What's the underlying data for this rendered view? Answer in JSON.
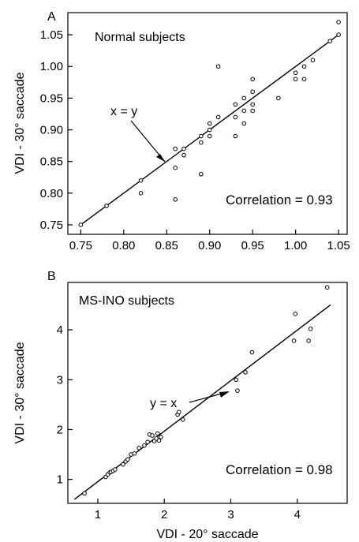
{
  "chart_data": [
    {
      "panel": "A",
      "type": "scatter",
      "title": "Normal subjects",
      "xlabel": "",
      "ylabel": "VDI - 30° saccade",
      "xlim": [
        0.735,
        1.06
      ],
      "ylim": [
        0.735,
        1.085
      ],
      "xticks": [
        0.75,
        0.8,
        0.85,
        0.9,
        0.95,
        1.0,
        1.05
      ],
      "xtick_labels": [
        "0.75",
        "0.80",
        "0.85",
        "0.90",
        "0.95",
        "1.00",
        "1.05"
      ],
      "yticks": [
        0.75,
        0.8,
        0.85,
        0.9,
        0.95,
        1.0,
        1.05
      ],
      "ytick_labels": [
        "0.75",
        "0.80",
        "0.85",
        "0.90",
        "0.95",
        "1.00",
        "1.05"
      ],
      "line": {
        "label": "x = y",
        "from": [
          0.75,
          0.75
        ],
        "to": [
          1.05,
          1.05
        ]
      },
      "annotation": "Correlation = 0.93",
      "points": [
        [
          0.75,
          0.75
        ],
        [
          0.78,
          0.78
        ],
        [
          0.82,
          0.8
        ],
        [
          0.82,
          0.82
        ],
        [
          0.86,
          0.79
        ],
        [
          0.86,
          0.84
        ],
        [
          0.86,
          0.87
        ],
        [
          0.87,
          0.86
        ],
        [
          0.87,
          0.87
        ],
        [
          0.89,
          0.83
        ],
        [
          0.89,
          0.88
        ],
        [
          0.89,
          0.89
        ],
        [
          0.9,
          0.89
        ],
        [
          0.9,
          0.9
        ],
        [
          0.9,
          0.91
        ],
        [
          0.91,
          0.92
        ],
        [
          0.91,
          1.0
        ],
        [
          0.93,
          0.89
        ],
        [
          0.93,
          0.92
        ],
        [
          0.93,
          0.94
        ],
        [
          0.94,
          0.91
        ],
        [
          0.94,
          0.93
        ],
        [
          0.94,
          0.95
        ],
        [
          0.95,
          0.93
        ],
        [
          0.95,
          0.94
        ],
        [
          0.95,
          0.96
        ],
        [
          0.95,
          0.98
        ],
        [
          0.98,
          0.95
        ],
        [
          1.0,
          0.98
        ],
        [
          1.0,
          0.99
        ],
        [
          1.01,
          0.98
        ],
        [
          1.01,
          1.0
        ],
        [
          1.02,
          1.01
        ],
        [
          1.04,
          1.04
        ],
        [
          1.05,
          1.05
        ],
        [
          1.05,
          1.07
        ]
      ]
    },
    {
      "panel": "B",
      "type": "scatter",
      "title": "MS-INO subjects",
      "xlabel": "VDI - 20° saccade",
      "ylabel": "VDI - 30° saccade",
      "xlim": [
        0.55,
        4.75
      ],
      "ylim": [
        0.52,
        4.95
      ],
      "xticks": [
        1,
        2,
        3,
        4
      ],
      "xtick_labels": [
        "1",
        "2",
        "3",
        "4"
      ],
      "yticks": [
        1,
        2,
        3,
        4
      ],
      "ytick_labels": [
        "1",
        "2",
        "3",
        "4"
      ],
      "line": {
        "label": "y = x",
        "from": [
          0.65,
          0.6
        ],
        "to": [
          4.5,
          4.5
        ]
      },
      "annotation": "Correlation = 0.98",
      "points": [
        [
          0.8,
          0.72
        ],
        [
          1.12,
          1.05
        ],
        [
          1.15,
          1.1
        ],
        [
          1.18,
          1.14
        ],
        [
          1.2,
          1.15
        ],
        [
          1.23,
          1.17
        ],
        [
          1.26,
          1.2
        ],
        [
          1.38,
          1.3
        ],
        [
          1.42,
          1.36
        ],
        [
          1.45,
          1.4
        ],
        [
          1.5,
          1.5
        ],
        [
          1.55,
          1.52
        ],
        [
          1.62,
          1.63
        ],
        [
          1.7,
          1.68
        ],
        [
          1.75,
          1.75
        ],
        [
          1.78,
          1.9
        ],
        [
          1.82,
          1.88
        ],
        [
          1.85,
          1.77
        ],
        [
          1.88,
          1.82
        ],
        [
          1.9,
          1.92
        ],
        [
          1.92,
          1.78
        ],
        [
          1.95,
          1.85
        ],
        [
          2.2,
          2.3
        ],
        [
          2.22,
          2.35
        ],
        [
          2.28,
          2.2
        ],
        [
          3.08,
          3.0
        ],
        [
          3.1,
          2.78
        ],
        [
          3.22,
          3.15
        ],
        [
          3.32,
          3.55
        ],
        [
          3.95,
          3.78
        ],
        [
          3.97,
          4.32
        ],
        [
          4.17,
          3.78
        ],
        [
          4.2,
          4.02
        ],
        [
          4.45,
          4.85
        ]
      ]
    }
  ]
}
